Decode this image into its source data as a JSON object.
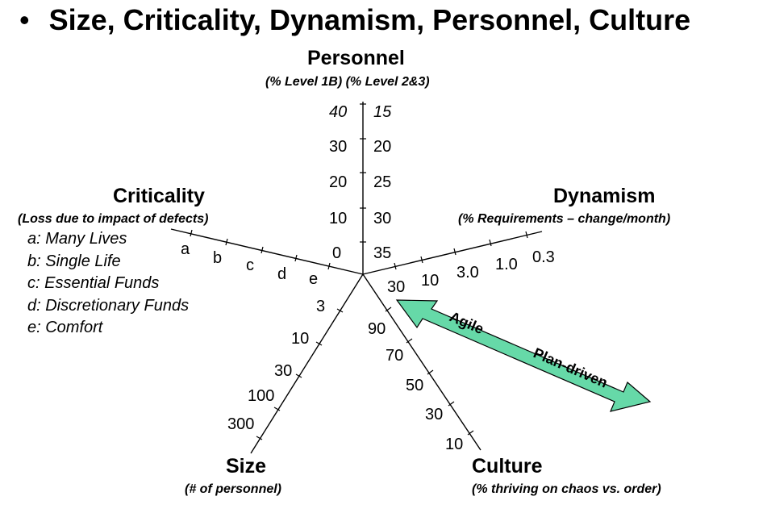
{
  "heading": {
    "bullet": "•",
    "text": "Size, Criticality, Dynamism, Personnel, Culture"
  },
  "colors": {
    "arrow_fill": "#66d9a8",
    "arrow_stroke": "#000000",
    "axis": "#000000"
  },
  "axes": {
    "personnel": {
      "title": "Personnel",
      "subtitle": "(% Level 1B) (% Level 2&3)",
      "left_ticks": [
        "0",
        "10",
        "20",
        "30",
        "40"
      ],
      "right_ticks": [
        "35",
        "30",
        "25",
        "20",
        "15"
      ]
    },
    "dynamism": {
      "title": "Dynamism",
      "subtitle": "(% Requirements – change/month)",
      "ticks": [
        "30",
        "10",
        "3.0",
        "1.0",
        "0.3"
      ]
    },
    "culture": {
      "title": "Culture",
      "subtitle": "(% thriving on chaos vs. order)",
      "ticks": [
        "90",
        "70",
        "50",
        "30",
        "10"
      ]
    },
    "size": {
      "title": "Size",
      "subtitle": "(# of personnel)",
      "ticks": [
        "3",
        "10",
        "30",
        "100",
        "300"
      ]
    },
    "criticality": {
      "title": "Criticality",
      "subtitle": "(Loss due to impact of defects)",
      "ticks": [
        "e",
        "d",
        "c",
        "b",
        "a"
      ],
      "legend": [
        "a: Many Lives",
        "b: Single Life",
        "c: Essential Funds",
        "d: Discretionary Funds",
        "e: Comfort"
      ]
    }
  },
  "arrow": {
    "agile_label": "Agile",
    "plan_label": "Plan-driven"
  }
}
